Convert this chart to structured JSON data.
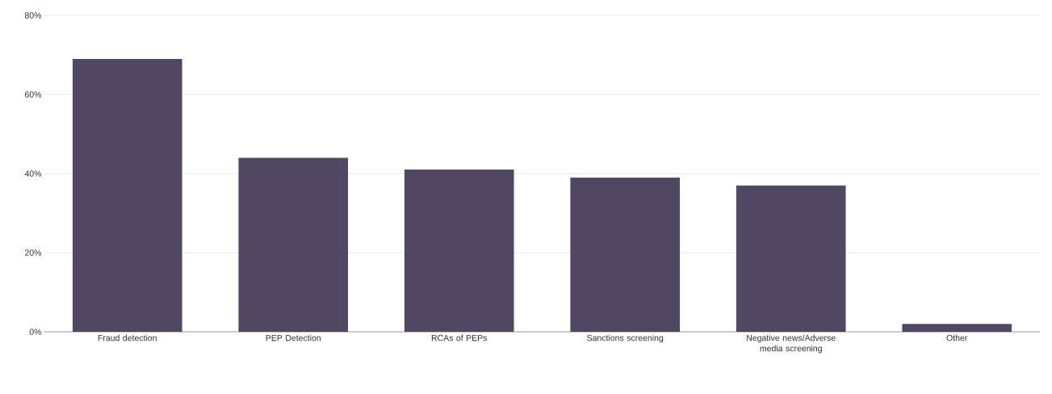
{
  "chart_data": {
    "type": "bar",
    "categories": [
      "Fraud detection",
      "PEP Detection",
      "RCAs of PEPs",
      "Sanctions screening",
      "Negative news/Adverse media screening",
      "Other"
    ],
    "values": [
      69,
      44,
      41,
      39,
      37,
      2
    ],
    "color": "#524763",
    "ylim": [
      0,
      80
    ],
    "yticks": [
      {
        "value": 0,
        "label": "0%"
      },
      {
        "value": 20,
        "label": "20%"
      },
      {
        "value": 40,
        "label": "40%"
      },
      {
        "value": 60,
        "label": "60%"
      },
      {
        "value": 80,
        "label": "80%"
      }
    ],
    "grid": "y"
  }
}
